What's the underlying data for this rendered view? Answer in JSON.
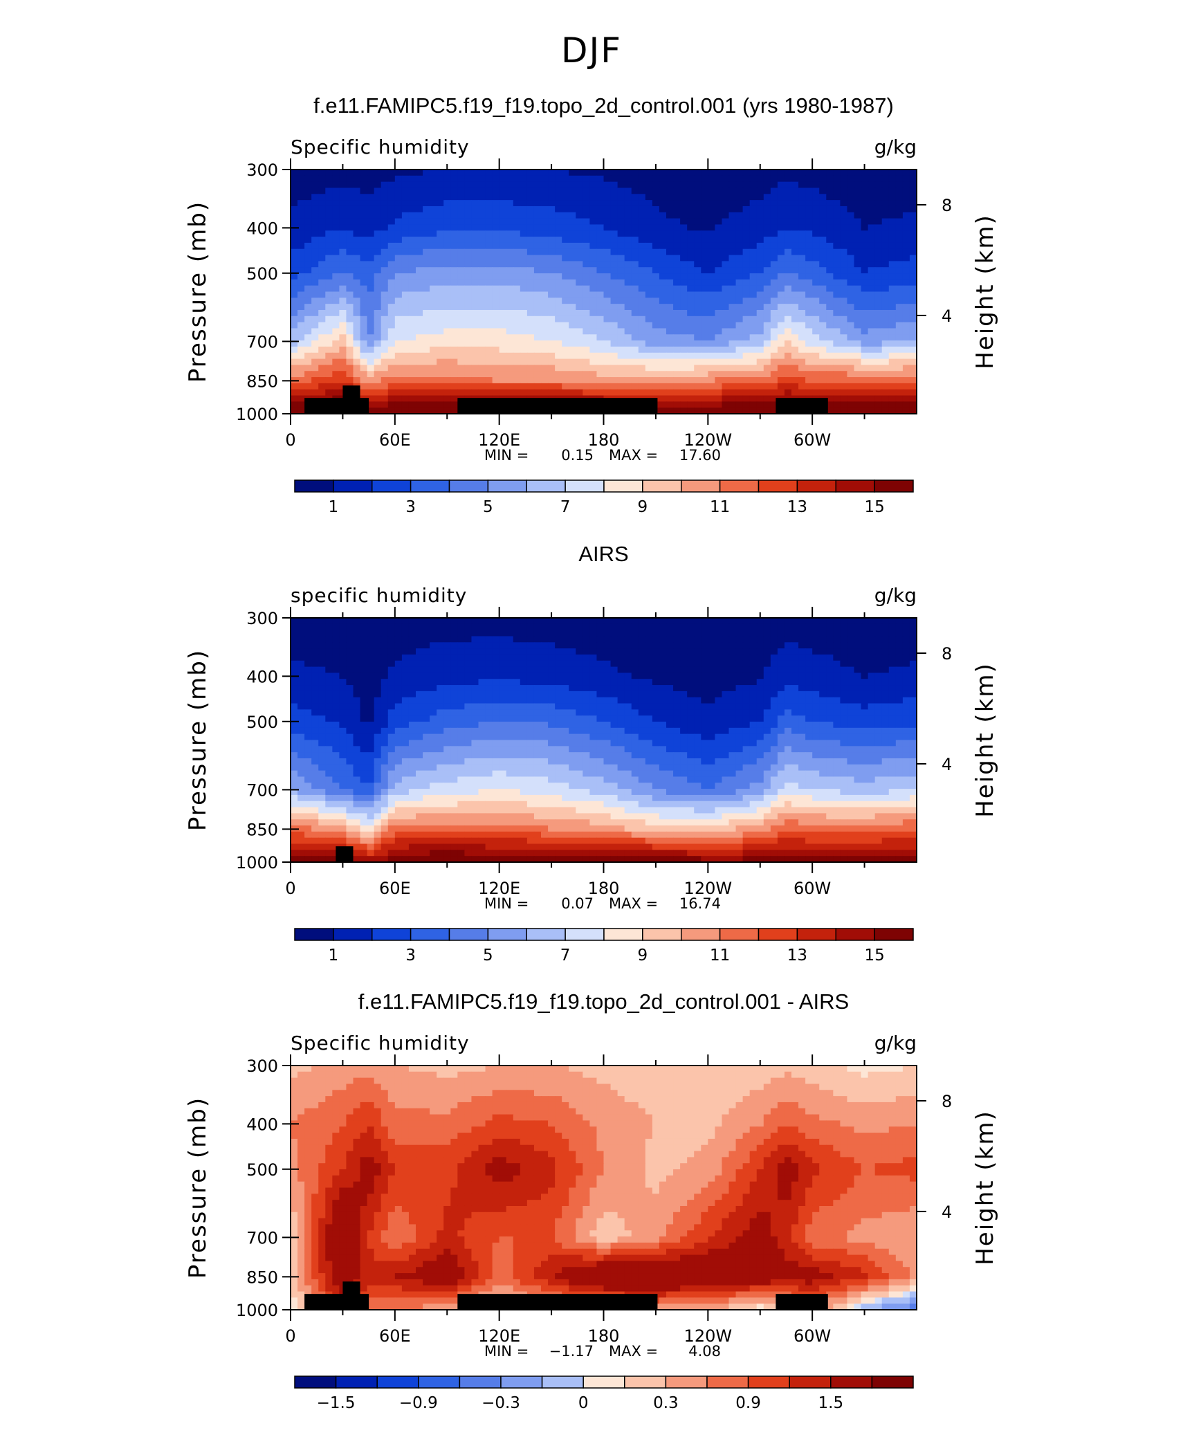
{
  "figure": {
    "title": "DJF"
  },
  "shared": {
    "ylabel": "Pressure (mb)",
    "ylabel_right": "Height (km)",
    "yticks": [
      "300",
      "400",
      "500",
      "700",
      "850",
      "1000"
    ],
    "yticks_right": [
      "8",
      "4"
    ],
    "xticks": [
      "0",
      "60E",
      "120E",
      "180",
      "120W",
      "60W"
    ],
    "units": "g/kg"
  },
  "chart_data": [
    {
      "type": "heatmap",
      "title": "f.e11.FAMIPC5.f19_f19.topo_2d_control.001 (yrs 1980-1987)",
      "variable": "Specific humidity",
      "units": "g/kg",
      "stats": {
        "min_label": "MIN =",
        "min": "0.15",
        "max_label": "MAX =",
        "max": "17.60"
      },
      "colorbar": {
        "levels": [
          1,
          2,
          3,
          4,
          5,
          6,
          7,
          8,
          9,
          10,
          11,
          12,
          13,
          14,
          15
        ],
        "labels": [
          "1",
          "3",
          "5",
          "7",
          "9",
          "11",
          "13",
          "15"
        ]
      },
      "x": [
        0,
        30,
        45,
        60,
        90,
        120,
        150,
        180,
        210,
        240,
        270,
        285,
        300,
        330,
        360
      ],
      "y_pressure": [
        300,
        400,
        500,
        700,
        850,
        1000
      ],
      "values": [
        [
          0.4,
          0.6,
          0.6,
          0.8,
          1.0,
          1.0,
          1.0,
          0.8,
          0.6,
          0.3,
          0.5,
          0.8,
          0.6,
          0.3,
          0.5
        ],
        [
          1.3,
          2.0,
          1.5,
          2.2,
          2.8,
          2.8,
          2.5,
          2.0,
          1.2,
          0.9,
          1.5,
          2.0,
          1.8,
          1.0,
          1.2
        ],
        [
          2.5,
          4.0,
          3.5,
          5.0,
          5.5,
          5.5,
          5.0,
          4.0,
          3.0,
          2.0,
          3.0,
          4.0,
          3.5,
          2.0,
          2.5
        ],
        [
          6.5,
          9.5,
          5.0,
          8.0,
          8.5,
          8.5,
          8.0,
          7.0,
          5.5,
          5.0,
          6.5,
          9.0,
          7.5,
          5.5,
          6.0
        ],
        [
          11.5,
          13.0,
          10.5,
          11.5,
          11.5,
          11.0,
          11.0,
          10.5,
          10.5,
          11.0,
          11.5,
          12.5,
          12.0,
          12.0,
          12.0
        ],
        [
          16.5,
          17.0,
          16.0,
          16.5,
          16.5,
          17.0,
          17.5,
          17.0,
          16.5,
          16.5,
          16.5,
          17.0,
          17.0,
          16.5,
          16.5
        ]
      ],
      "topography": [
        {
          "lon0": 8,
          "lon1": 45,
          "p_top": 925
        },
        {
          "lon0": 30,
          "lon1": 40,
          "p_top": 870
        },
        {
          "lon0": 96,
          "lon1": 211,
          "p_top": 925
        },
        {
          "lon0": 279,
          "lon1": 309,
          "p_top": 925
        }
      ]
    },
    {
      "type": "heatmap",
      "title": "AIRS",
      "variable": "specific humidity",
      "units": "g/kg",
      "stats": {
        "min_label": "MIN =",
        "min": "0.07",
        "max_label": "MAX =",
        "max": "16.74"
      },
      "colorbar": {
        "levels": [
          1,
          2,
          3,
          4,
          5,
          6,
          7,
          8,
          9,
          10,
          11,
          12,
          13,
          14,
          15
        ],
        "labels": [
          "1",
          "3",
          "5",
          "7",
          "9",
          "11",
          "13",
          "15"
        ]
      },
      "x": [
        0,
        30,
        45,
        60,
        90,
        120,
        150,
        180,
        210,
        240,
        270,
        285,
        300,
        330,
        360
      ],
      "y_pressure": [
        300,
        400,
        500,
        700,
        850,
        1000
      ],
      "values": [
        [
          0.4,
          0.5,
          0.3,
          0.5,
          0.6,
          0.6,
          0.5,
          0.4,
          0.3,
          0.2,
          0.3,
          0.6,
          0.5,
          0.3,
          0.4
        ],
        [
          1.2,
          1.0,
          0.5,
          1.2,
          1.6,
          1.8,
          1.6,
          1.2,
          0.8,
          0.6,
          0.9,
          1.6,
          1.4,
          1.0,
          1.2
        ],
        [
          2.5,
          1.8,
          0.8,
          2.5,
          3.5,
          4.0,
          3.8,
          3.0,
          2.0,
          1.2,
          2.0,
          3.5,
          3.0,
          2.5,
          2.8
        ],
        [
          6.0,
          4.0,
          3.0,
          6.5,
          7.5,
          8.0,
          7.5,
          6.5,
          5.0,
          4.0,
          5.5,
          7.5,
          7.0,
          6.5,
          7.0
        ],
        [
          11.5,
          10.5,
          8.5,
          11.5,
          11.5,
          11.5,
          11.0,
          10.5,
          9.5,
          9.5,
          10.5,
          12.0,
          11.5,
          11.5,
          12.0
        ],
        [
          15.5,
          16.0,
          14.5,
          16.0,
          16.5,
          16.0,
          16.5,
          16.5,
          16.0,
          15.5,
          15.5,
          15.5,
          15.5,
          15.5,
          15.5
        ]
      ],
      "topography": [
        {
          "lon0": 26,
          "lon1": 36,
          "p_top": 925
        }
      ]
    },
    {
      "type": "heatmap",
      "title": "f.e11.FAMIPC5.f19_f19.topo_2d_control.001 - AIRS",
      "variable": "Specific humidity",
      "units": "g/kg",
      "stats": {
        "min_label": "MIN =",
        "min": "−1.17",
        "max_label": "MAX =",
        "max": "4.08"
      },
      "colorbar": {
        "levels": [
          -1.8,
          -1.5,
          -1.2,
          -0.9,
          -0.6,
          -0.3,
          0,
          0.15,
          0.3,
          0.6,
          0.9,
          1.2,
          1.5,
          1.8
        ],
        "labels": [
          "−1.5",
          "−0.9",
          "−0.3",
          "0",
          "0.3",
          "0.9",
          "1.5"
        ]
      },
      "x": [
        0,
        30,
        45,
        60,
        90,
        120,
        150,
        180,
        210,
        240,
        270,
        285,
        300,
        330,
        360
      ],
      "y_pressure": [
        300,
        400,
        500,
        700,
        850,
        1000
      ],
      "values": [
        [
          0.5,
          0.7,
          0.8,
          0.6,
          0.5,
          0.6,
          0.6,
          0.5,
          0.4,
          0.3,
          0.4,
          0.5,
          0.4,
          0.2,
          0.3
        ],
        [
          0.9,
          1.2,
          1.5,
          1.0,
          1.0,
          1.3,
          1.2,
          0.8,
          0.6,
          0.5,
          0.9,
          1.2,
          1.0,
          0.8,
          0.9
        ],
        [
          0.8,
          1.5,
          2.0,
          1.5,
          1.4,
          2.0,
          1.6,
          0.9,
          0.5,
          0.7,
          1.5,
          2.0,
          1.6,
          1.2,
          1.3
        ],
        [
          0.3,
          2.5,
          1.5,
          0.9,
          1.6,
          1.2,
          1.2,
          0.4,
          0.8,
          1.5,
          2.0,
          1.6,
          1.0,
          0.8,
          0.6
        ],
        [
          0.4,
          2.2,
          1.6,
          1.8,
          2.2,
          1.0,
          1.8,
          2.5,
          2.5,
          2.3,
          2.2,
          2.0,
          2.0,
          1.6,
          0.8
        ],
        [
          0.1,
          1.5,
          1.0,
          0.9,
          0.7,
          0.3,
          0.5,
          0.6,
          0.7,
          0.6,
          0.1,
          0.4,
          0.9,
          -0.3,
          -0.8
        ]
      ],
      "topography": [
        {
          "lon0": 8,
          "lon1": 45,
          "p_top": 925
        },
        {
          "lon0": 30,
          "lon1": 40,
          "p_top": 870
        },
        {
          "lon0": 96,
          "lon1": 211,
          "p_top": 925
        },
        {
          "lon0": 279,
          "lon1": 309,
          "p_top": 925
        }
      ]
    }
  ],
  "colors": {
    "palette": [
      "#000e7d",
      "#0021b3",
      "#0f43d8",
      "#2f63e4",
      "#567de8",
      "#7f9df0",
      "#a9bff7",
      "#d4e0fb",
      "#fde6d6",
      "#fbc4ab",
      "#f59a7d",
      "#ee6a47",
      "#e1401c",
      "#c4220c",
      "#a10d06",
      "#7e0303"
    ],
    "topography": "#000000"
  }
}
